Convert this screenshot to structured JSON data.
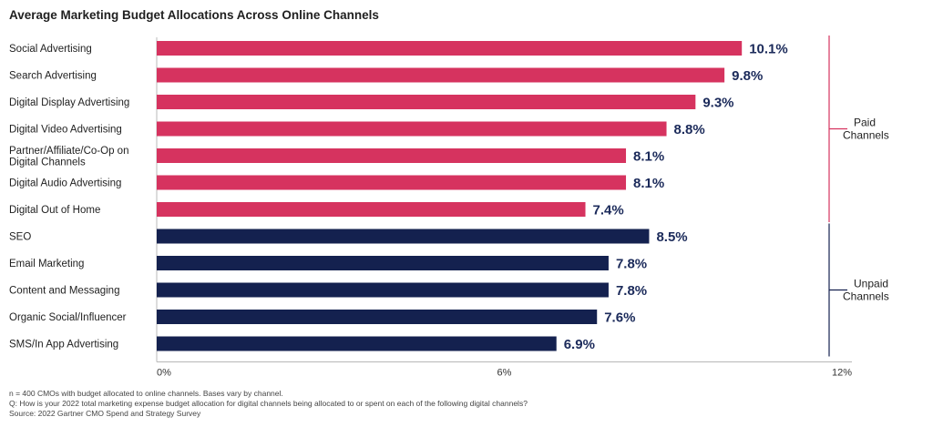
{
  "chart_data": {
    "type": "bar",
    "orientation": "horizontal",
    "title": "Average Marketing Budget Allocations Across Online Channels",
    "categories": [
      "Social Advertising",
      "Search Advertising",
      "Digital Display Advertising",
      "Digital Video Advertising",
      "Partner/Affiliate/Co-Op on Digital Channels",
      "Digital Audio Advertising",
      "Digital Out of Home",
      "SEO",
      "Email Marketing",
      "Content and Messaging",
      "Organic Social/Influencer",
      "SMS/In App Advertising"
    ],
    "category_lines": [
      [
        "Social Advertising"
      ],
      [
        "Search Advertising"
      ],
      [
        "Digital Display Advertising"
      ],
      [
        "Digital Video Advertising"
      ],
      [
        "Partner/Affiliate/Co-Op on",
        "Digital Channels"
      ],
      [
        "Digital Audio Advertising"
      ],
      [
        "Digital Out of Home"
      ],
      [
        "SEO"
      ],
      [
        "Email Marketing"
      ],
      [
        "Content and Messaging"
      ],
      [
        "Organic Social/Influencer"
      ],
      [
        "SMS/In App Advertising"
      ]
    ],
    "values": [
      10.1,
      9.8,
      9.3,
      8.8,
      8.1,
      8.1,
      7.4,
      8.5,
      7.8,
      7.8,
      7.6,
      6.9
    ],
    "value_labels": [
      "10.1%",
      "9.8%",
      "9.3%",
      "8.8%",
      "8.1%",
      "8.1%",
      "7.4%",
      "8.5%",
      "7.8%",
      "7.8%",
      "7.6%",
      "6.9%"
    ],
    "groups": [
      {
        "name": "Paid Channels",
        "lines": [
          "Paid",
          "Channels"
        ],
        "start": 0,
        "end": 6,
        "color": "#d6335f"
      },
      {
        "name": "Unpaid Channels",
        "lines": [
          "Unpaid",
          "Channels"
        ],
        "start": 7,
        "end": 11,
        "color": "#14214f"
      }
    ],
    "xlim": [
      0,
      12
    ],
    "xticks": [
      0,
      6,
      12
    ],
    "xtick_labels": [
      "0%",
      "6%",
      "12%"
    ],
    "xlabel": "",
    "ylabel": "",
    "grid": false
  },
  "notes": [
    "n = 400 CMOs with budget allocated to online channels. Bases vary by channel.",
    "Q: How is your 2022 total marketing expense budget allocation for digital channels being allocated to or spent on each of the following digital channels?",
    "Source: 2022 Gartner CMO Spend and Strategy Survey"
  ]
}
